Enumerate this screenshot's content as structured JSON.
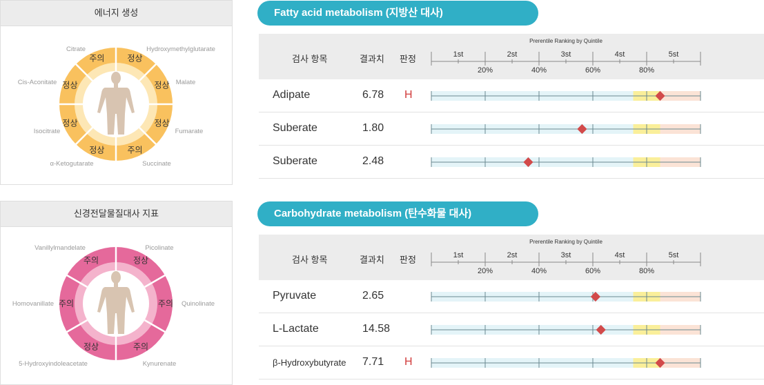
{
  "colors": {
    "accent": "#30afc6",
    "energy_outer": "#f9c15e",
    "energy_inner": "#fde7b5",
    "neuro_outer": "#e5699b",
    "neuro_inner": "#f4b3cc",
    "flag_high": "#d13b3b",
    "marker": "#d24a4a",
    "band_blue": "#e4f4f8",
    "band_yellow": "#faef9a",
    "band_pink": "#fbe3d6"
  },
  "energy_panel": {
    "title": "에너지 생성",
    "segments": [
      "정상",
      "정상",
      "정상",
      "주의",
      "정상",
      "정상",
      "정상",
      "주의"
    ],
    "labels": [
      "Citrate",
      "Hydroxymethylglutarate",
      "Malate",
      "Fumarate",
      "Succinate",
      "α-Ketogutarate",
      "Isocitrate",
      "Cis-Aconitate"
    ]
  },
  "neuro_panel": {
    "title": "신경전달물질대사 지표",
    "segments": [
      "정상",
      "주의",
      "주의",
      "정상",
      "주의",
      "주의"
    ],
    "labels": [
      "Picolinate",
      "Quinolinate",
      "Kynurenate",
      "5-Hydroxyindoleacetate",
      "Homovanillate",
      "Vanillylmandelate"
    ]
  },
  "sections": [
    {
      "title": "Fatty acid metabolism (지방산 대사)",
      "header": {
        "item": "검사 항목",
        "result": "결과치",
        "judgement": "판정",
        "ranking_title": "Prerentile Ranking by Quintile",
        "quintiles": [
          "1st",
          "2st",
          "3st",
          "4st",
          "5st"
        ],
        "percent_ticks": [
          "20%",
          "40%",
          "60%",
          "80%"
        ]
      },
      "rows": [
        {
          "name": "Adipate",
          "value": "6.78",
          "flag": "H",
          "percentile": 85
        },
        {
          "name": "Suberate",
          "value": "1.80",
          "flag": "",
          "percentile": 56
        },
        {
          "name": "Suberate",
          "value": "2.48",
          "flag": "",
          "percentile": 36
        }
      ]
    },
    {
      "title": "Carbohydrate metabolism (탄수화물 대사)",
      "header": {
        "item": "검사 항목",
        "result": "결과치",
        "judgement": "판정",
        "ranking_title": "Prerentile Ranking by Quintile",
        "quintiles": [
          "1st",
          "2st",
          "3st",
          "4st",
          "5st"
        ],
        "percent_ticks": [
          "20%",
          "40%",
          "60%",
          "80%"
        ]
      },
      "rows": [
        {
          "name": "Pyruvate",
          "value": "2.65",
          "flag": "",
          "percentile": 61
        },
        {
          "name": "L-Lactate",
          "value": "14.58",
          "flag": "",
          "percentile": 63
        },
        {
          "name": "β-Hydroxybutyrate",
          "value": "7.71",
          "flag": "H",
          "percentile": 85
        }
      ]
    }
  ]
}
